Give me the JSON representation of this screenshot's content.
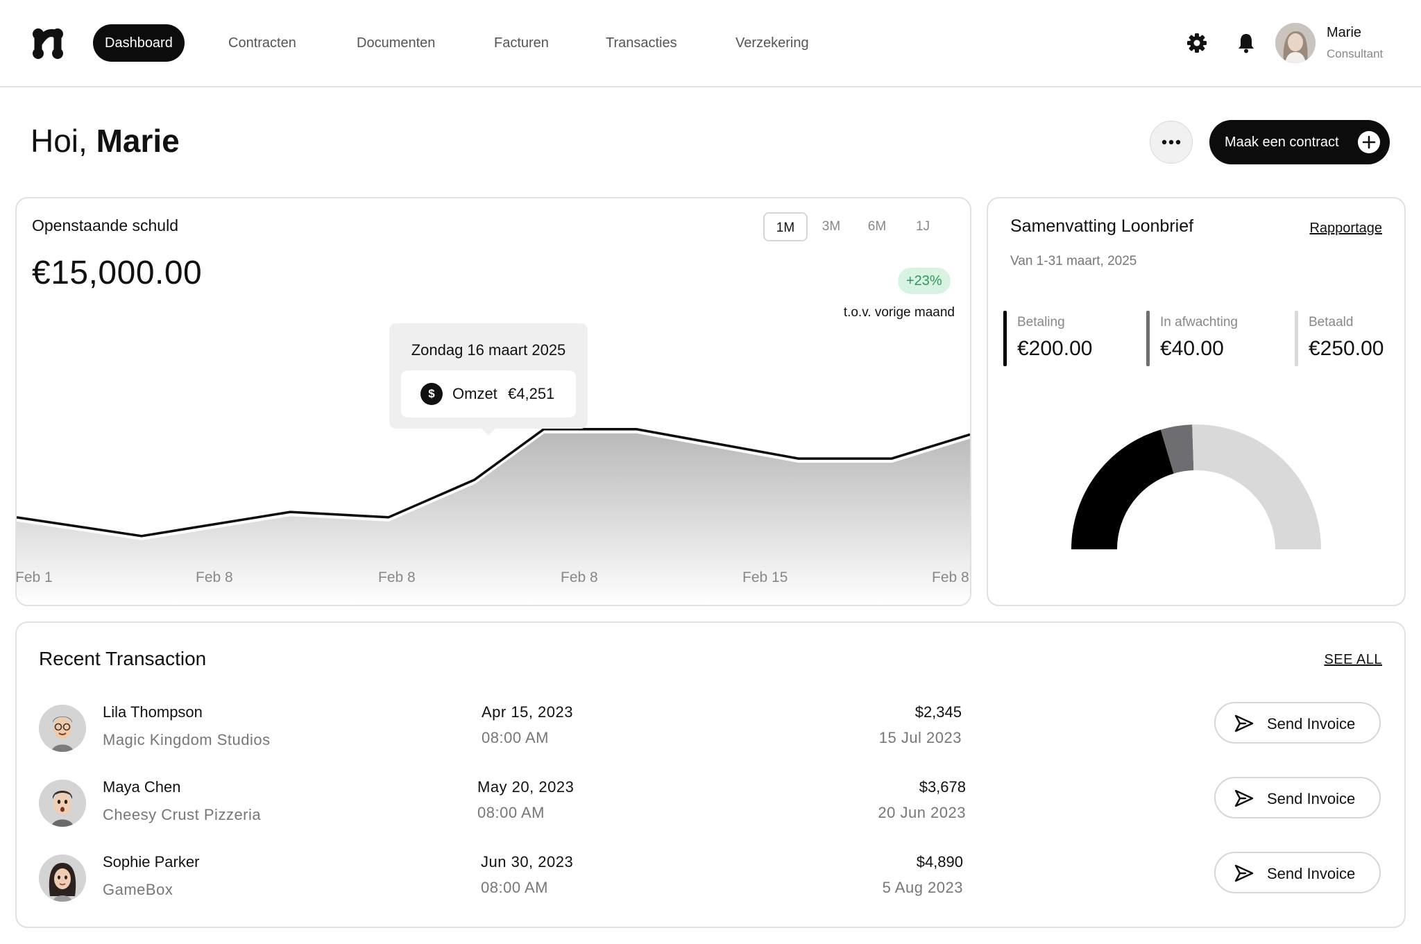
{
  "nav": {
    "logo_icon": "brand-logo-icon",
    "items": [
      {
        "label": "Dashboard",
        "active": true
      },
      {
        "label": "Contracten",
        "active": false
      },
      {
        "label": "Documenten",
        "active": false
      },
      {
        "label": "Facturen",
        "active": false
      },
      {
        "label": "Transacties",
        "active": false
      },
      {
        "label": "Verzekering",
        "active": false
      }
    ],
    "settings_icon": "gear-icon",
    "notifications_icon": "bell-icon",
    "user": {
      "name": "Marie",
      "role": "Consultant"
    }
  },
  "header": {
    "greeting_prefix": "Hoi,",
    "greeting_name": "Marie",
    "more_icon": "more-horizontal-icon",
    "cta_label": "Maak een contract",
    "cta_icon": "plus-circle-icon"
  },
  "debt_card": {
    "title": "Openstaande schuld",
    "amount": "€15,000.00",
    "ranges": [
      {
        "label": "1M",
        "active": true
      },
      {
        "label": "3M",
        "active": false
      },
      {
        "label": "6M",
        "active": false
      },
      {
        "label": "1J",
        "active": false
      }
    ],
    "delta_badge": "+23%",
    "delta_caption": "t.o.v. vorige maand",
    "tooltip": {
      "date": "Zondag 16 maart 2025",
      "coin_symbol": "$",
      "label": "Omzet",
      "value": "€4,251"
    }
  },
  "chart_data": {
    "type": "area",
    "title": "",
    "xlabel": "",
    "ylabel": "",
    "x_ticks": [
      "Feb 1",
      "Feb 8",
      "Feb 8",
      "Feb 8",
      "Feb 15",
      "Feb 8"
    ],
    "series": [
      {
        "values": [
          2600,
          2250,
          2700,
          2600,
          3300,
          4251,
          4251,
          3700,
          3700,
          4150
        ]
      }
    ],
    "ylim": [
      0,
      6000
    ],
    "grid": false,
    "legend": "none"
  },
  "summary_card": {
    "title": "Samenvatting Loonbrief",
    "link": "Rapportage",
    "subtitle": "Van 1-31 maart, 2025",
    "stats": [
      {
        "label": "Betaling",
        "value": "€200.00",
        "color": "#000000"
      },
      {
        "label": "In afwachting",
        "value": "€40.00",
        "color": "#6e6e72"
      },
      {
        "label": "Betaald",
        "value": "€250.00",
        "color": "#d9d9d9"
      }
    ],
    "gauge": {
      "type": "half-donut",
      "values": [
        200,
        40,
        250
      ]
    }
  },
  "transactions": {
    "title": "Recent Transaction",
    "see_all": "SEE ALL",
    "button_label": "Send Invoice",
    "button_icon": "send-icon",
    "rows": [
      {
        "name": "Lila Thompson",
        "company": "Magic Kingdom Studios",
        "date": "Apr 15, 2023",
        "time": "08:00 AM",
        "amount": "$2,345",
        "due": "15 Jul 2023"
      },
      {
        "name": "Maya Chen",
        "company": "Cheesy Crust Pizzeria",
        "date": "May 20, 2023",
        "time": "08:00 AM",
        "amount": "$3,678",
        "due": "20 Jun 2023"
      },
      {
        "name": "Sophie Parker",
        "company": "GameBox",
        "date": "Jun 30, 2023",
        "time": "08:00 AM",
        "amount": "$4,890",
        "due": "5 Aug 2023"
      }
    ]
  }
}
